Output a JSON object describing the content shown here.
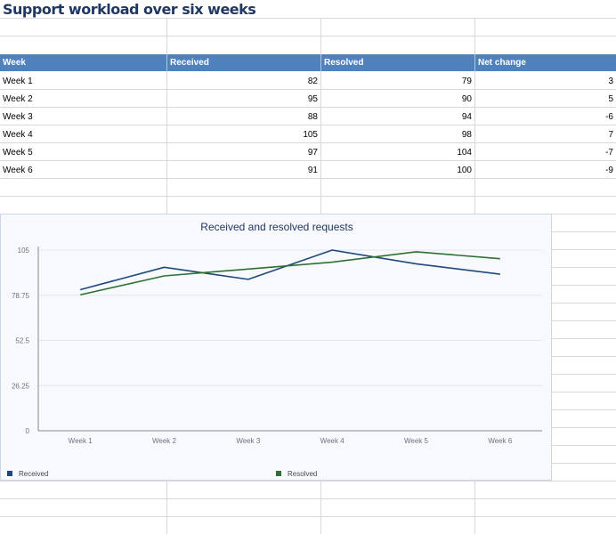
{
  "sheet": {
    "title": "Support workload over six weeks",
    "columns": [
      "Week",
      "Received",
      "Resolved",
      "Net change"
    ],
    "rows": [
      {
        "week": "Week 1",
        "received": "82",
        "resolved": "79",
        "net": "3"
      },
      {
        "week": "Week 2",
        "received": "95",
        "resolved": "90",
        "net": "5"
      },
      {
        "week": "Week 3",
        "received": "88",
        "resolved": "94",
        "net": "-6"
      },
      {
        "week": "Week 4",
        "received": "105",
        "resolved": "98",
        "net": "7"
      },
      {
        "week": "Week 5",
        "received": "97",
        "resolved": "104",
        "net": "-7"
      },
      {
        "week": "Week 6",
        "received": "91",
        "resolved": "100",
        "net": "-9"
      }
    ],
    "colors": {
      "header_fill": "#4f81bd",
      "title_text": "#1f3864",
      "gridline": "#d8d8d8"
    }
  },
  "chart_data": {
    "type": "line",
    "title": "Received and resolved requests",
    "categories": [
      "Week 1",
      "Week 2",
      "Week 3",
      "Week 4",
      "Week 5",
      "Week 6"
    ],
    "series": [
      {
        "name": "Received",
        "values": [
          82,
          95,
          88,
          105,
          97,
          91
        ],
        "color": "#1f497d"
      },
      {
        "name": "Resolved",
        "values": [
          79,
          90,
          94,
          98,
          104,
          100
        ],
        "color": "#2e7032"
      }
    ],
    "ylim": [
      0,
      105
    ],
    "yticks": [
      "0",
      "26.25",
      "52.5",
      "78.75",
      "105"
    ],
    "xlabel": "",
    "ylabel": "",
    "grid": true,
    "legend": "bottom"
  }
}
